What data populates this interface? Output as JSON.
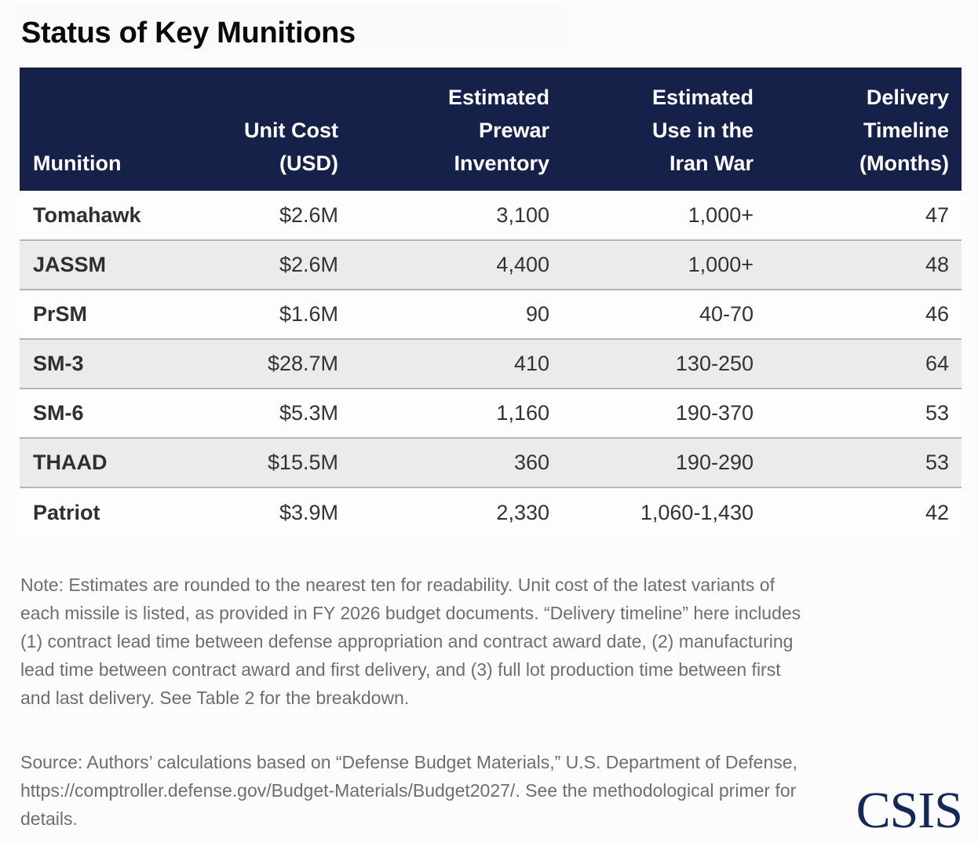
{
  "title": "Status of Key Munitions",
  "table": {
    "headers": {
      "munition": "Munition",
      "unit_cost": "Unit Cost (USD)",
      "inventory": "Estimated Prewar Inventory",
      "use": "Estimated Use in the Iran War",
      "delivery": "Delivery Timeline (Months)"
    },
    "header_lines": {
      "munition": [
        "Munition"
      ],
      "unit_cost": [
        "Unit Cost",
        "(USD)"
      ],
      "inventory": [
        "Estimated",
        "Prewar",
        "Inventory"
      ],
      "use": [
        "Estimated",
        "Use in the",
        "Iran War"
      ],
      "delivery": [
        "Delivery",
        "Timeline",
        "(Months)"
      ]
    },
    "rows": [
      {
        "munition": "Tomahawk",
        "unit_cost": "$2.6M",
        "inventory": "3,100",
        "use": "1,000+",
        "delivery": "47"
      },
      {
        "munition": "JASSM",
        "unit_cost": "$2.6M",
        "inventory": "4,400",
        "use": "1,000+",
        "delivery": "48"
      },
      {
        "munition": "PrSM",
        "unit_cost": "$1.6M",
        "inventory": "90",
        "use": "40-70",
        "delivery": "46"
      },
      {
        "munition": "SM-3",
        "unit_cost": "$28.7M",
        "inventory": "410",
        "use": "130-250",
        "delivery": "64"
      },
      {
        "munition": "SM-6",
        "unit_cost": "$5.3M",
        "inventory": "1,160",
        "use": "190-370",
        "delivery": "53"
      },
      {
        "munition": "THAAD",
        "unit_cost": "$15.5M",
        "inventory": "360",
        "use": "190-290",
        "delivery": "53"
      },
      {
        "munition": "Patriot",
        "unit_cost": "$3.9M",
        "inventory": "2,330",
        "use": "1,060-1,430",
        "delivery": "42"
      }
    ]
  },
  "note": "Note: Estimates are rounded to the nearest ten for readability. Unit cost of the latest variants of each missile is listed, as provided in FY 2026 budget documents. “Delivery timeline” here includes (1) contract lead time between defense appropriation and contract award date, (2) manufacturing lead time between contract award and first delivery, and (3) full lot production time between first and last delivery. See Table 2 for the breakdown.",
  "source": "Source: Authors’ calculations based on “Defense Budget Materials,” U.S. Department of Defense, https://comptroller.defense.gov/Budget-Materials/Budget2027/. See the methodological primer for details.",
  "logo": "CSIS",
  "colors": {
    "header_bg": "#16214a",
    "alt_row_bg": "#ebebeb",
    "row_border": "#b5b5b5",
    "logo": "#14285a",
    "note_text": "#6e6e6e"
  }
}
